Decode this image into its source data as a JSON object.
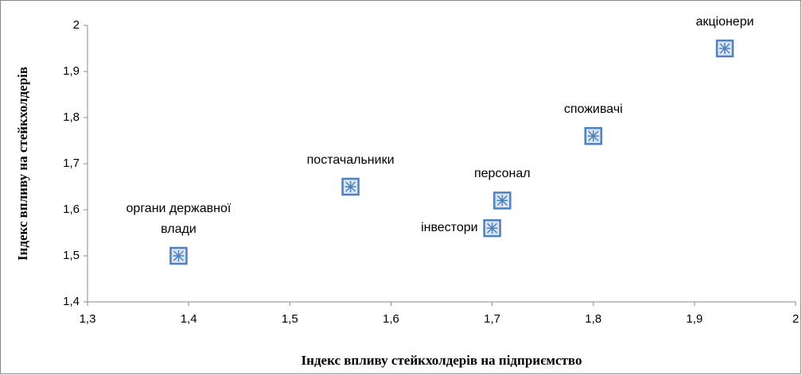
{
  "chart_data": {
    "type": "scatter",
    "x_label": "Індекс впливу стейкхолдерів на підприємство",
    "y_label": "Індекс впливу на стейкхолдерів",
    "point_labels": [
      "органи державної влади",
      "постачальники",
      "інвестори",
      "персонал",
      "споживачі",
      "акціонери"
    ],
    "x": [
      1.39,
      1.56,
      1.7,
      1.71,
      1.8,
      1.93
    ],
    "values": [
      1.5,
      1.65,
      1.56,
      1.62,
      1.76,
      1.95
    ],
    "color": "#4f81bd",
    "xlim": [
      1.3,
      2
    ],
    "xticks": [
      {
        "value": 1.3,
        "label": "1,3"
      },
      {
        "value": 1.4,
        "label": "1,4"
      },
      {
        "value": 1.5,
        "label": "1,5"
      },
      {
        "value": 1.6,
        "label": "1,6"
      },
      {
        "value": 1.7,
        "label": "1,7"
      },
      {
        "value": 1.8,
        "label": "1,8"
      },
      {
        "value": 1.9,
        "label": "1,9"
      },
      2
    ],
    "ylim": [
      1.4,
      2
    ],
    "yticks": [
      {
        "value": 1.4,
        "label": "1,4"
      },
      {
        "value": 1.5,
        "label": "1,5"
      },
      {
        "value": 1.6,
        "label": "1,6"
      },
      {
        "value": 1.7,
        "label": "1,7"
      },
      {
        "value": 1.8,
        "label": "1,8"
      },
      {
        "value": 1.9,
        "label": "1,9"
      },
      2
    ],
    "grid": false
  }
}
